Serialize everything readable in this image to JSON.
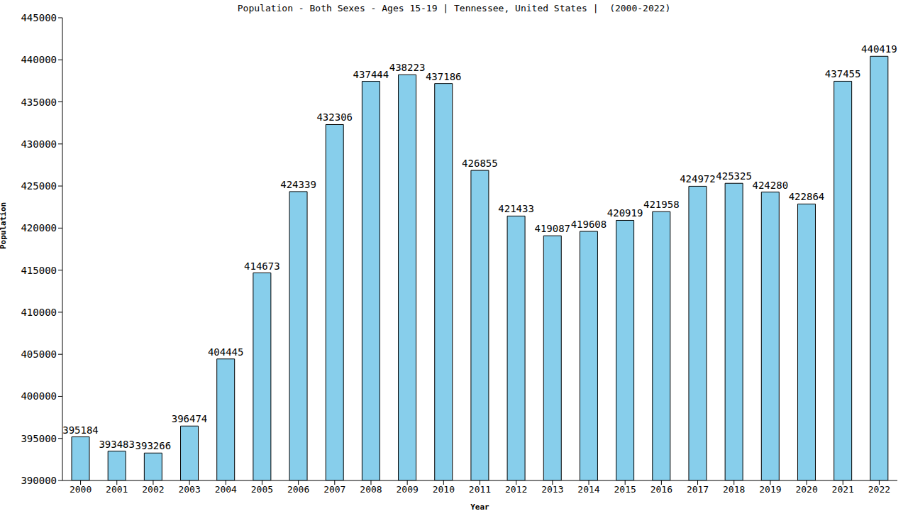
{
  "chart_data": {
    "type": "bar",
    "title": "Population - Both Sexes - Ages 15-19 | Tennessee, United States |  (2000-2022)",
    "x_label": "Year",
    "y_label": "Population",
    "categories": [
      "2000",
      "2001",
      "2002",
      "2003",
      "2004",
      "2005",
      "2006",
      "2007",
      "2008",
      "2009",
      "2010",
      "2011",
      "2012",
      "2013",
      "2014",
      "2015",
      "2016",
      "2017",
      "2018",
      "2019",
      "2020",
      "2021",
      "2022"
    ],
    "values": [
      395184,
      393483,
      393266,
      396474,
      404445,
      414673,
      424339,
      432306,
      437444,
      438223,
      437186,
      426855,
      421433,
      419087,
      419608,
      420919,
      421958,
      424972,
      425325,
      424280,
      422864,
      437455,
      440419
    ],
    "color": "#87ceeb",
    "ylim": [
      390000,
      445000
    ],
    "yticks": [
      390000,
      395000,
      400000,
      405000,
      410000,
      415000,
      420000,
      425000,
      430000,
      435000,
      440000,
      445000
    ],
    "grid": false,
    "data_labels": true
  }
}
